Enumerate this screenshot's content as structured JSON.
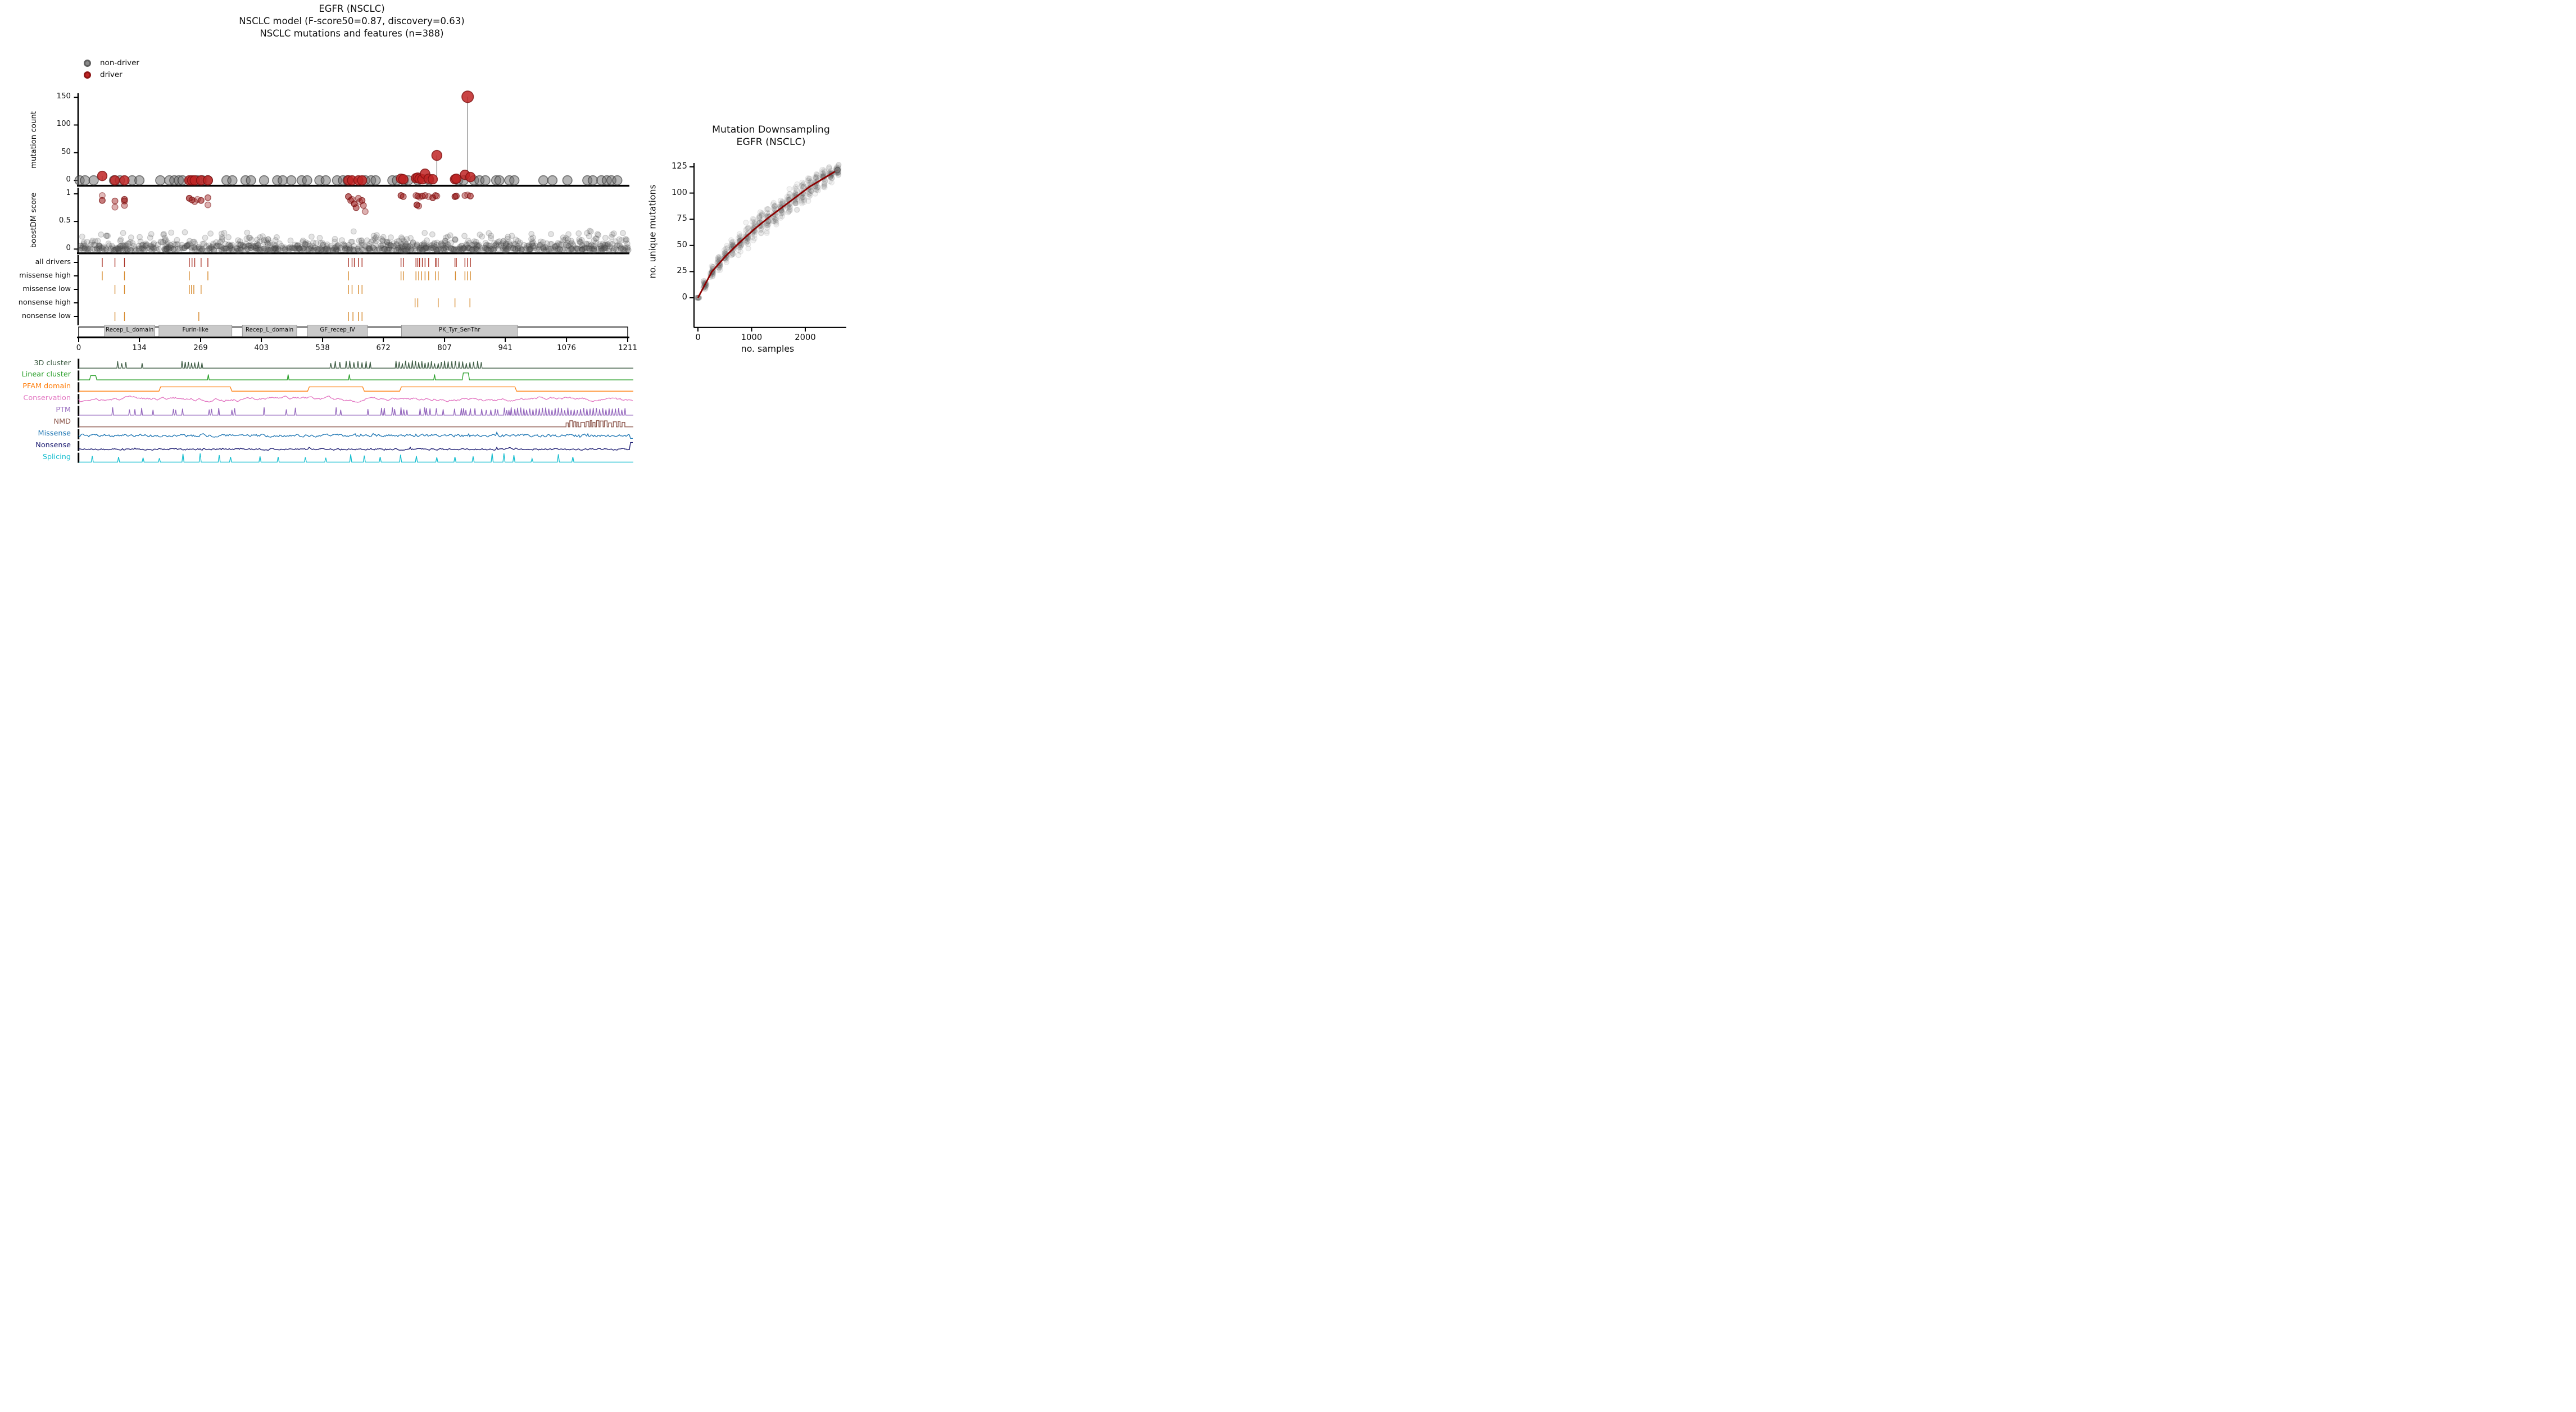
{
  "figure": {
    "title_line1": "EGFR (NSCLC)",
    "title_line2": "NSCLC model (F-score50=0.87, discovery=0.63)",
    "title_line3": "NSCLC mutations and features (n=388)"
  },
  "legend": {
    "items": [
      {
        "label": "non-driver",
        "color": "#8a8a8a",
        "edge": "#5f5f5f"
      },
      {
        "label": "driver",
        "color": "#c02424",
        "edge": "#8c1616"
      }
    ]
  },
  "chart_data": [
    {
      "id": "mutation_count_lollipop",
      "type": "scatter",
      "ylabel": "mutation count",
      "yticks": [
        0,
        50,
        100,
        150
      ],
      "ylim": [
        0,
        160
      ],
      "xlim": [
        0,
        1211
      ],
      "driver_color": "#c02424",
      "non_driver_color": "#6e6e6e",
      "drivers": [
        [
          52,
          8
        ],
        [
          80,
          0
        ],
        [
          101,
          0
        ],
        [
          244,
          0
        ],
        [
          250,
          0
        ],
        [
          256,
          0
        ],
        [
          270,
          0
        ],
        [
          285,
          0
        ],
        [
          595,
          0
        ],
        [
          603,
          0
        ],
        [
          617,
          0
        ],
        [
          625,
          0
        ],
        [
          711,
          3
        ],
        [
          716,
          2
        ],
        [
          744,
          4
        ],
        [
          748,
          5
        ],
        [
          752,
          3
        ],
        [
          758,
          2
        ],
        [
          764,
          12
        ],
        [
          772,
          3
        ],
        [
          781,
          2
        ],
        [
          790,
          45
        ],
        [
          830,
          2
        ],
        [
          833,
          3
        ],
        [
          852,
          10
        ],
        [
          858,
          151
        ],
        [
          864,
          6
        ]
      ],
      "non_drivers": [
        2,
        14,
        33,
        78,
        91,
        118,
        134,
        180,
        200,
        211,
        221,
        229,
        262,
        273,
        285,
        326,
        339,
        368,
        380,
        409,
        438,
        450,
        469,
        492,
        504,
        531,
        545,
        570,
        583,
        593,
        632,
        645,
        655,
        692,
        702,
        717,
        727,
        748,
        773,
        837,
        849,
        872,
        884,
        897,
        921,
        928,
        950,
        961,
        1025,
        1045,
        1078,
        1122,
        1134,
        1153,
        1165,
        1175,
        1188
      ]
    },
    {
      "id": "boostdm_score",
      "type": "scatter",
      "ylabel": "boostDM score",
      "yticks": [
        0,
        0.5,
        1
      ],
      "ylim": [
        0,
        1
      ],
      "driver_points": [
        [
          52,
          0.97
        ],
        [
          52,
          0.88
        ],
        [
          80,
          0.87
        ],
        [
          80,
          0.76
        ],
        [
          101,
          0.9
        ],
        [
          101,
          0.87
        ],
        [
          101,
          0.79
        ],
        [
          244,
          0.92
        ],
        [
          250,
          0.89
        ],
        [
          256,
          0.86
        ],
        [
          262,
          0.9
        ],
        [
          270,
          0.88
        ],
        [
          285,
          0.93
        ],
        [
          285,
          0.8
        ],
        [
          595,
          0.95
        ],
        [
          600,
          0.88
        ],
        [
          603,
          0.9
        ],
        [
          608,
          0.82
        ],
        [
          612,
          0.75
        ],
        [
          617,
          0.92
        ],
        [
          620,
          0.86
        ],
        [
          625,
          0.88
        ],
        [
          628,
          0.79
        ],
        [
          632,
          0.68
        ],
        [
          711,
          0.97
        ],
        [
          716,
          0.95
        ],
        [
          744,
          0.97
        ],
        [
          746,
          0.8
        ],
        [
          748,
          0.96
        ],
        [
          750,
          0.78
        ],
        [
          752,
          0.94
        ],
        [
          758,
          0.96
        ],
        [
          764,
          0.97
        ],
        [
          772,
          0.95
        ],
        [
          781,
          0.93
        ],
        [
          787,
          0.97
        ],
        [
          790,
          0.96
        ],
        [
          830,
          0.95
        ],
        [
          833,
          0.96
        ],
        [
          852,
          0.97
        ],
        [
          858,
          0.98
        ],
        [
          864,
          0.96
        ]
      ],
      "non_driver_cloud": {
        "n": 1150,
        "score_mean": 0.055,
        "score_max": 0.33
      }
    },
    {
      "id": "driver_tracks",
      "type": "rug",
      "rows": [
        {
          "label": "all drivers",
          "color": "#a93226",
          "positions": [
            52,
            80,
            101,
            244,
            250,
            256,
            270,
            285,
            595,
            603,
            608,
            617,
            625,
            711,
            716,
            744,
            748,
            752,
            758,
            764,
            772,
            787,
            790,
            793,
            830,
            833,
            852,
            858,
            864
          ]
        },
        {
          "label": "missense high",
          "color": "#d68a2e",
          "positions": [
            52,
            101,
            244,
            285,
            595,
            711,
            716,
            744,
            750,
            756,
            764,
            772,
            787,
            793,
            831,
            852,
            858,
            864
          ]
        },
        {
          "label": "missense low",
          "color": "#d68a2e",
          "positions": [
            80,
            101,
            244,
            249,
            254,
            270,
            595,
            603,
            617,
            625
          ]
        },
        {
          "label": "nonsense high",
          "color": "#d68a2e",
          "positions": [
            742,
            748,
            793,
            830,
            863
          ]
        },
        {
          "label": "nonsense low",
          "color": "#d68a2e",
          "positions": [
            80,
            101,
            265,
            595,
            605,
            617,
            625
          ]
        }
      ]
    },
    {
      "id": "protein_domains",
      "type": "domain_bar",
      "xticks": [
        0,
        134,
        269,
        403,
        538,
        672,
        807,
        941,
        1076,
        1211
      ],
      "box_color": "#c9c9c9",
      "domains": [
        {
          "name": "Recep_L_domain",
          "start": 57,
          "end": 168
        },
        {
          "name": "Furin-like",
          "start": 177,
          "end": 338
        },
        {
          "name": "Recep_L_domain",
          "start": 361,
          "end": 481
        },
        {
          "name": "GF_recep_IV",
          "start": 505,
          "end": 637
        },
        {
          "name": "PK_Tyr_Ser-Thr",
          "start": 712,
          "end": 968
        }
      ]
    },
    {
      "id": "feature_tracks",
      "type": "line_tracks",
      "tracks": [
        {
          "label": "3D cluster",
          "color": "#3f5d45",
          "kind": "spikes",
          "spikes": [
            86,
            95,
            104,
            140,
            228,
            235,
            242,
            249,
            256,
            264,
            272,
            556,
            566,
            576,
            590,
            598,
            607,
            616,
            625,
            634,
            643,
            700,
            707,
            714,
            721,
            728,
            736,
            743,
            750,
            757,
            764,
            771,
            778,
            785,
            793,
            800,
            807,
            815,
            823,
            831,
            839,
            847,
            855,
            863,
            871,
            880,
            888
          ]
        },
        {
          "label": "Linear cluster",
          "color": "#2ca02c",
          "kind": "mixed",
          "plateaus": [
            [
              24,
              40,
              0.5
            ],
            [
              846,
              862,
              0.8
            ]
          ],
          "spikes": [
            286,
            462,
            597,
            785
          ]
        },
        {
          "label": "PFAM domain",
          "color": "#ff7f0e",
          "kind": "plateau",
          "plateaus": [
            [
              177,
              338,
              0.55
            ],
            [
              505,
              630,
              0.55
            ],
            [
              708,
              966,
              0.55
            ]
          ]
        },
        {
          "label": "Conservation",
          "color": "#e377c2",
          "kind": "noise",
          "base": 0.5,
          "amp": 0.42
        },
        {
          "label": "PTM",
          "color": "#9467bd",
          "kind": "spikes",
          "spikes": [
            75,
            112,
            124,
            139,
            164,
            209,
            214,
            229,
            288,
            293,
            309,
            338,
            344,
            409,
            458,
            478,
            568,
            578,
            638,
            668,
            674,
            692,
            697,
            711,
            717,
            724,
            753,
            763,
            767,
            775,
            789,
            804,
            829,
            844,
            849,
            854,
            864,
            874,
            889,
            899,
            909,
            919,
            924,
            939,
            944,
            949,
            954,
            962,
            968,
            975,
            982,
            988,
            995,
            1002,
            1009,
            1016,
            1023,
            1030,
            1037,
            1044,
            1051,
            1058,
            1065,
            1072,
            1079,
            1086,
            1093,
            1100,
            1107,
            1114,
            1121,
            1128,
            1135,
            1142,
            1149,
            1156,
            1163,
            1170,
            1177,
            1184,
            1191,
            1198,
            1205
          ]
        },
        {
          "label": "NMD",
          "color": "#8c564b",
          "kind": "pulses",
          "region": [
            1075,
            1211
          ]
        },
        {
          "label": "Missense",
          "color": "#1f77b4",
          "kind": "noise",
          "base": 0.35,
          "amp": 0.28,
          "end": "drop"
        },
        {
          "label": "Nonsense",
          "color": "#191970",
          "kind": "noise",
          "base": 0.12,
          "amp": 0.16,
          "end": "spike"
        },
        {
          "label": "Splicing",
          "color": "#17becf",
          "kind": "vspikes",
          "spikes": [
            [
              30,
              0.7
            ],
            [
              88,
              0.6
            ],
            [
              142,
              0.5
            ],
            [
              178,
              0.45
            ],
            [
              230,
              0.95
            ],
            [
              268,
              1.0
            ],
            [
              310,
              0.8
            ],
            [
              335,
              0.6
            ],
            [
              400,
              0.65
            ],
            [
              440,
              0.6
            ],
            [
              500,
              0.55
            ],
            [
              545,
              0.5
            ],
            [
              600,
              0.9
            ],
            [
              630,
              0.75
            ],
            [
              665,
              0.6
            ],
            [
              710,
              0.85
            ],
            [
              745,
              0.7
            ],
            [
              790,
              0.55
            ],
            [
              830,
              0.6
            ],
            [
              870,
              0.65
            ],
            [
              912,
              1.0
            ],
            [
              938,
              1.0
            ],
            [
              960,
              0.8
            ],
            [
              1000,
              0.4
            ],
            [
              1058,
              0.9
            ],
            [
              1090,
              0.6
            ]
          ]
        }
      ]
    },
    {
      "id": "mutation_downsampling",
      "type": "scatter",
      "title_line1": "Mutation Downsampling",
      "title_line2": "EGFR (NSCLC)",
      "xlabel": "no. samples",
      "ylabel": "no. unique mutations",
      "xticks": [
        0,
        1000,
        2000
      ],
      "yticks": [
        0,
        25,
        50,
        75,
        100,
        125
      ],
      "xlim": [
        0,
        2700
      ],
      "ylim": [
        0,
        130
      ],
      "curve_color": "#8b0000",
      "point_color": "#5a5a5a",
      "curve_points": [
        [
          0,
          0
        ],
        [
          260,
          25
        ],
        [
          520,
          40
        ],
        [
          780,
          53
        ],
        [
          1040,
          65
        ],
        [
          1300,
          76
        ],
        [
          1560,
          86
        ],
        [
          1820,
          96
        ],
        [
          2080,
          106
        ],
        [
          2340,
          114
        ],
        [
          2600,
          122
        ]
      ],
      "sample_clusters": {
        "x_step": 130,
        "n_clusters": 21,
        "points_per_cluster": 30
      }
    }
  ]
}
